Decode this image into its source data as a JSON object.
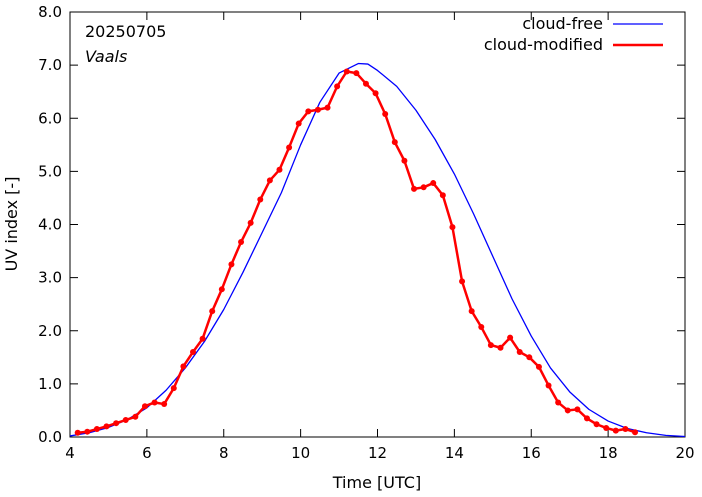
{
  "chart_data": {
    "type": "line",
    "annotations": {
      "date": "20250705",
      "location": "Vaals"
    },
    "xlabel": "Time  [UTC]",
    "ylabel": "UV index  [-]",
    "xlim": [
      4,
      20
    ],
    "ylim": [
      0,
      8
    ],
    "x_ticks": [
      "4",
      "6",
      "8",
      "10",
      "12",
      "14",
      "16",
      "18",
      "20"
    ],
    "y_ticks": [
      "0.0",
      "1.0",
      "2.0",
      "3.0",
      "4.0",
      "5.0",
      "6.0",
      "7.0",
      "8.0"
    ],
    "grid": false,
    "legend_position": "top-right",
    "series": [
      {
        "name": "cloud-free",
        "color": "#0000ff",
        "markers": false,
        "x": [
          4.0,
          4.5,
          5.0,
          5.5,
          6.0,
          6.5,
          7.0,
          7.5,
          8.0,
          8.5,
          9.0,
          9.5,
          10.0,
          10.5,
          11.0,
          11.5,
          11.75,
          12.0,
          12.5,
          13.0,
          13.5,
          14.0,
          14.5,
          15.0,
          15.5,
          16.0,
          16.5,
          17.0,
          17.5,
          18.0,
          18.5,
          19.0,
          19.5,
          20.0
        ],
        "y": [
          0.02,
          0.08,
          0.18,
          0.33,
          0.55,
          0.88,
          1.3,
          1.8,
          2.4,
          3.1,
          3.85,
          4.6,
          5.5,
          6.3,
          6.85,
          7.03,
          7.02,
          6.9,
          6.6,
          6.15,
          5.6,
          4.95,
          4.2,
          3.4,
          2.6,
          1.9,
          1.3,
          0.85,
          0.52,
          0.3,
          0.16,
          0.08,
          0.03,
          0.01
        ]
      },
      {
        "name": "cloud-modified",
        "color": "#ff0000",
        "markers": true,
        "x": [
          4.2,
          4.45,
          4.7,
          4.95,
          5.2,
          5.45,
          5.7,
          5.95,
          6.2,
          6.45,
          6.7,
          6.95,
          7.2,
          7.45,
          7.7,
          7.95,
          8.2,
          8.45,
          8.7,
          8.95,
          9.2,
          9.45,
          9.7,
          9.95,
          10.2,
          10.45,
          10.7,
          10.95,
          11.2,
          11.45,
          11.7,
          11.95,
          12.2,
          12.45,
          12.7,
          12.95,
          13.2,
          13.45,
          13.7,
          13.95,
          14.2,
          14.45,
          14.7,
          14.95,
          15.2,
          15.45,
          15.7,
          15.95,
          16.2,
          16.45,
          16.7,
          16.95,
          17.2,
          17.45,
          17.7,
          17.95,
          18.2,
          18.45,
          18.7
        ],
        "y": [
          0.08,
          0.1,
          0.15,
          0.2,
          0.26,
          0.32,
          0.38,
          0.58,
          0.65,
          0.62,
          0.92,
          1.33,
          1.6,
          1.85,
          2.37,
          2.78,
          3.25,
          3.67,
          4.03,
          4.47,
          4.83,
          5.03,
          5.45,
          5.9,
          6.13,
          6.16,
          6.2,
          6.6,
          6.88,
          6.85,
          6.65,
          6.47,
          6.08,
          5.55,
          5.2,
          4.67,
          4.7,
          4.78,
          4.55,
          3.95,
          2.93,
          2.37,
          2.07,
          1.73,
          1.68,
          1.87,
          1.6,
          1.5,
          1.32,
          0.97,
          0.65,
          0.5,
          0.52,
          0.35,
          0.24,
          0.17,
          0.12,
          0.15,
          0.09
        ]
      }
    ]
  }
}
